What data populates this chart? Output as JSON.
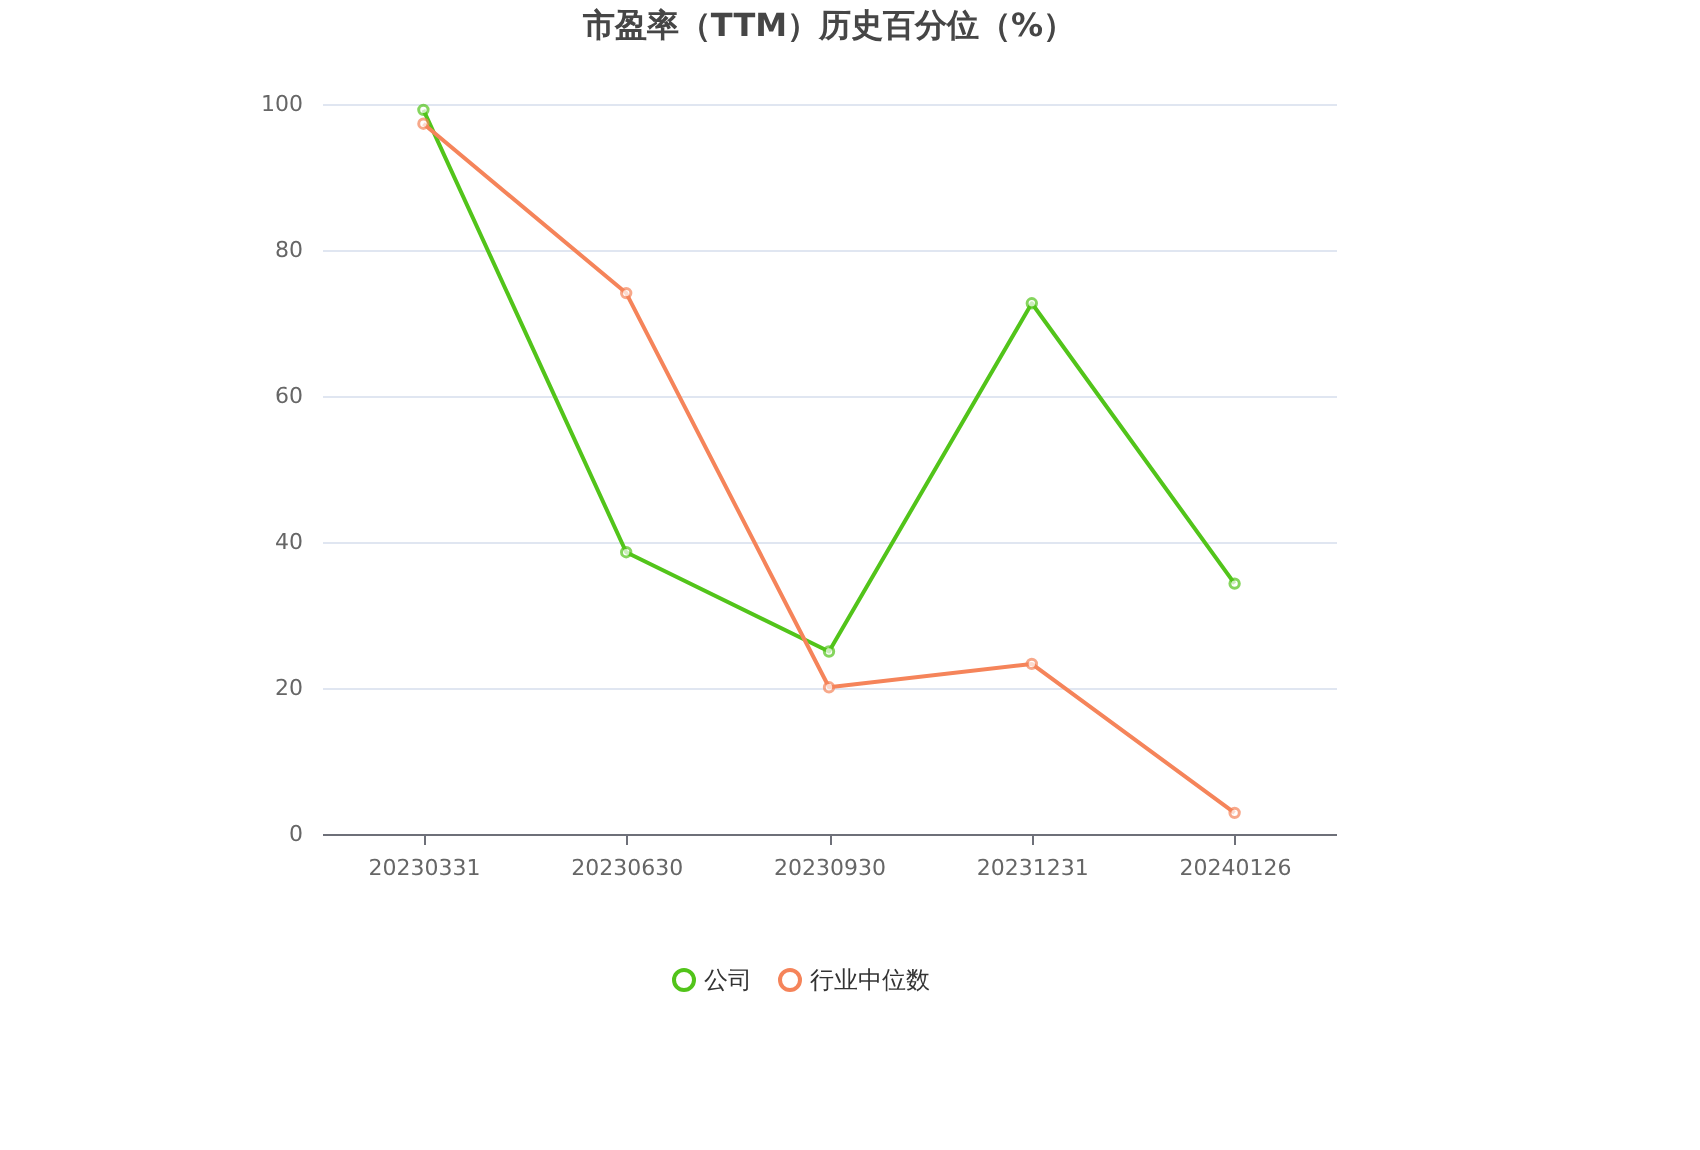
{
  "chart_data": {
    "type": "line",
    "title": "市盈率（TTM）历史百分位（%）",
    "categories": [
      "20230331",
      "20230630",
      "20230930",
      "20231231",
      "20240126"
    ],
    "series": [
      {
        "name": "公司",
        "color": "#52c41a",
        "values": [
          99.2,
          38.6,
          25.0,
          72.7,
          34.3
        ]
      },
      {
        "name": "行业中位数",
        "color": "#f5845a",
        "values": [
          97.3,
          74.1,
          20.1,
          23.3,
          2.9
        ]
      }
    ],
    "ylim": [
      0,
      100
    ],
    "yticks": [
      0,
      20,
      40,
      60,
      80,
      100
    ],
    "grid": "y",
    "legend": "bottom",
    "marker": "circle",
    "line_style": "solid"
  }
}
